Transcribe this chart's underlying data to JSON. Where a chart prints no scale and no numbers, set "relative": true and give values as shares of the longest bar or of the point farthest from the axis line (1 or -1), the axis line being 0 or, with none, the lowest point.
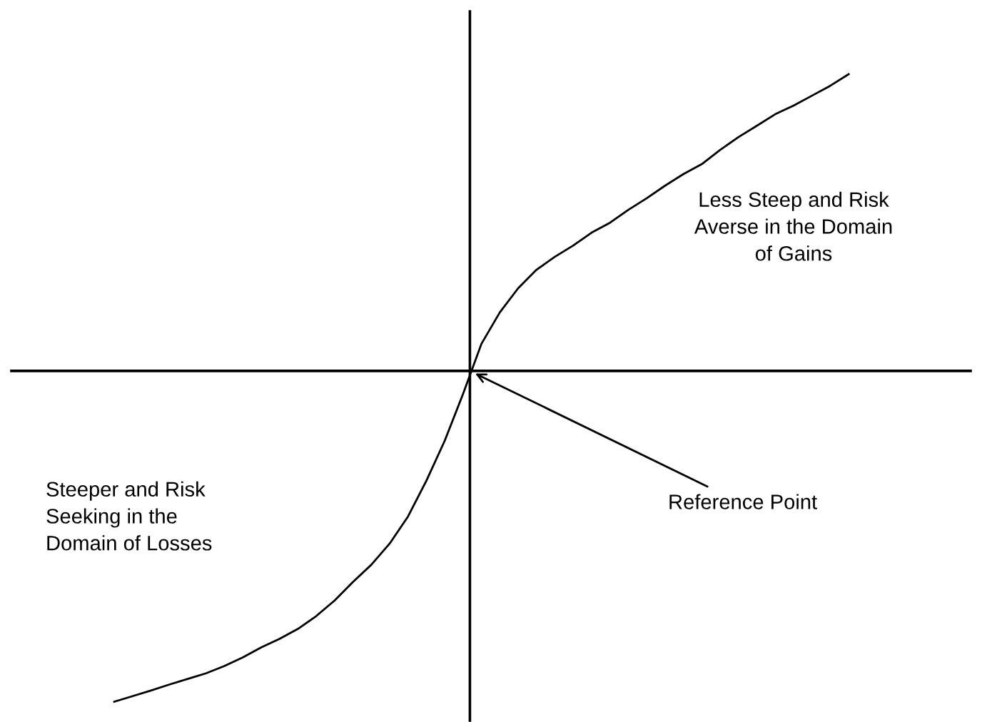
{
  "chart_data": {
    "type": "line",
    "relative": true,
    "marker": "none",
    "line_style": "solid",
    "categories": [
      null,
      null,
      null,
      null,
      null,
      null,
      null,
      null,
      null,
      null,
      null,
      null,
      null,
      null,
      null,
      null,
      null,
      null,
      null,
      null,
      null,
      null,
      null,
      null,
      null,
      null,
      null,
      null,
      null,
      null,
      null,
      null,
      null,
      null,
      null,
      null,
      null,
      null,
      null,
      null,
      null
    ],
    "series": [
      {
        "color": "#000000",
        "values": [
          -1,
          -0.983,
          -0.966,
          -0.948,
          -0.931,
          -0.914,
          -0.892,
          -0.866,
          -0.836,
          -0.81,
          -0.78,
          -0.741,
          -0.694,
          -0.638,
          -0.586,
          -0.522,
          -0.44,
          -0.332,
          -0.211,
          -0.069,
          0.082,
          0.177,
          0.25,
          0.306,
          0.345,
          0.379,
          0.418,
          0.448,
          0.487,
          0.522,
          0.56,
          0.595,
          0.625,
          0.668,
          0.707,
          0.741,
          0.776,
          0.802,
          0.832,
          0.862,
          0.897
        ]
      }
    ],
    "annotations": [
      "Less Steep and Risk\nAverse in the Domain\nof Gains",
      "Steeper and Risk\nSeeking in the\nDomain of Losses",
      "Reference Point"
    ]
  }
}
